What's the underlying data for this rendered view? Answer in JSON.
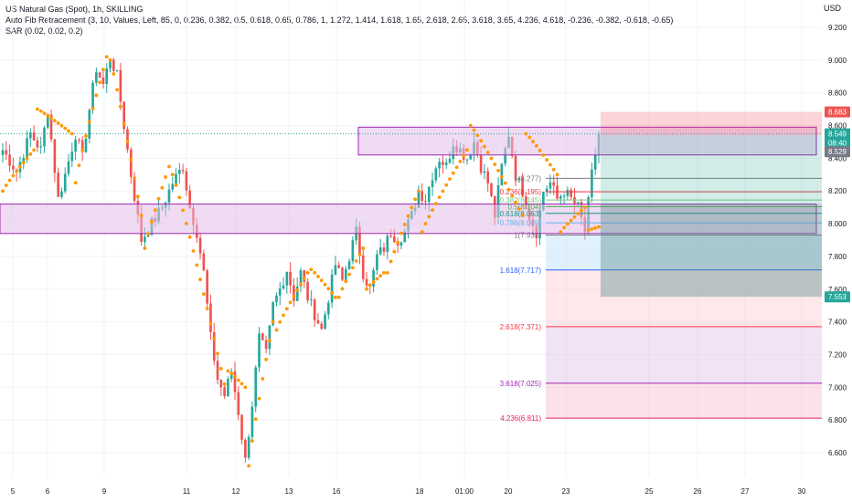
{
  "legend": {
    "line1": "US Natural Gas (Spot), 1h, SKILLING",
    "line2": "Auto Fib Retracement (3, 10, Values, Left, 85, 0, 0.236, 0.382, 0.5, 0.618, 0.65, 0.786, 1, 1.272, 1.414, 1.618, 1.65, 2.618, 2.65, 3.618, 3.65, 4.236, 4.618, -0.236, -0.382, -0.618, -0.65)",
    "line3": "SAR (0.02, 0.02, 0.2)"
  },
  "currency": "USD",
  "colors": {
    "up": "#26a69a",
    "down": "#ef5350",
    "sar": "#ff9800",
    "zone_fill": "#e1bee7",
    "zone_stroke": "#9c27b0",
    "grid": "#f0f3fa",
    "axis_text": "#131722",
    "price_tag": "#26a69a",
    "stop_tag": "#ef5350"
  },
  "chart_data": {
    "type": "candlestick",
    "title": "US Natural Gas (Spot), 1h, SKILLING",
    "ylim": [
      6.4,
      9.35
    ],
    "y_ticks": [
      "9.200",
      "9.000",
      "8.800",
      "8.600",
      "8.400",
      "8.200",
      "8.000",
      "7.800",
      "7.600",
      "7.400",
      "7.200",
      "7.000",
      "6.800",
      "6.600"
    ],
    "x_ticks": [
      "5",
      "6",
      "9",
      "11",
      "12",
      "13",
      "16",
      "18",
      "01:00",
      "20",
      "23",
      "25",
      "26",
      "27",
      "30"
    ],
    "price_anchors": [
      [
        0,
        8.45
      ],
      [
        4,
        8.32
      ],
      [
        8,
        8.55
      ],
      [
        11,
        8.45
      ],
      [
        13,
        8.7
      ],
      [
        16,
        8.15
      ],
      [
        18,
        8.3
      ],
      [
        21,
        8.55
      ],
      [
        23,
        8.4
      ],
      [
        25,
        8.7
      ],
      [
        27,
        8.95
      ],
      [
        29,
        8.85
      ],
      [
        31,
        9.02
      ],
      [
        33,
        8.9
      ],
      [
        35,
        8.6
      ],
      [
        37,
        8.3
      ],
      [
        40,
        7.9
      ],
      [
        43,
        8.0
      ],
      [
        46,
        8.1
      ],
      [
        49,
        8.25
      ],
      [
        52,
        8.35
      ],
      [
        54,
        8.1
      ],
      [
        56,
        7.95
      ],
      [
        58,
        7.7
      ],
      [
        60,
        7.3
      ],
      [
        62,
        7.05
      ],
      [
        64,
        6.95
      ],
      [
        66,
        7.1
      ],
      [
        68,
        6.85
      ],
      [
        70,
        6.55
      ],
      [
        72,
        6.9
      ],
      [
        74,
        7.3
      ],
      [
        76,
        7.2
      ],
      [
        78,
        7.5
      ],
      [
        80,
        7.6
      ],
      [
        82,
        7.72
      ],
      [
        84,
        7.55
      ],
      [
        86,
        7.7
      ],
      [
        88,
        7.55
      ],
      [
        90,
        7.45
      ],
      [
        92,
        7.35
      ],
      [
        94,
        7.55
      ],
      [
        96,
        7.75
      ],
      [
        98,
        7.65
      ],
      [
        100,
        7.8
      ],
      [
        102,
        7.95
      ],
      [
        104,
        7.7
      ],
      [
        106,
        7.6
      ],
      [
        108,
        7.8
      ],
      [
        110,
        7.85
      ],
      [
        112,
        7.95
      ],
      [
        114,
        7.9
      ],
      [
        116,
        7.95
      ],
      [
        118,
        8.05
      ],
      [
        120,
        8.2
      ],
      [
        122,
        8.15
      ],
      [
        124,
        8.3
      ],
      [
        126,
        8.4
      ],
      [
        128,
        8.35
      ],
      [
        130,
        8.5
      ],
      [
        132,
        8.45
      ],
      [
        134,
        8.4
      ],
      [
        136,
        8.5
      ],
      [
        138,
        8.35
      ],
      [
        140,
        8.25
      ],
      [
        142,
        8.05
      ],
      [
        144,
        8.35
      ],
      [
        146,
        8.55
      ],
      [
        148,
        8.3
      ],
      [
        150,
        8.2
      ],
      [
        152,
        8.05
      ],
      [
        154,
        7.95
      ],
      [
        156,
        8.2
      ],
      [
        158,
        8.25
      ],
      [
        160,
        8.15
      ],
      [
        162,
        8.2
      ],
      [
        164,
        8.15
      ],
      [
        166,
        8.1
      ],
      [
        168,
        7.95
      ],
      [
        170,
        8.3
      ],
      [
        172,
        8.55
      ]
    ],
    "sar_segments": [
      {
        "dir": "up",
        "from": 0,
        "to": 9,
        "start": 8.2,
        "end": 8.45
      },
      {
        "dir": "down",
        "from": 10,
        "to": 20,
        "start": 8.7,
        "end": 8.55
      },
      {
        "dir": "up",
        "from": 21,
        "to": 30,
        "start": 8.25,
        "end": 9.02
      },
      {
        "dir": "down",
        "from": 31,
        "to": 40,
        "start": 9.0,
        "end": 8.05
      },
      {
        "dir": "up",
        "from": 41,
        "to": 48,
        "start": 7.85,
        "end": 8.35
      },
      {
        "dir": "down",
        "from": 49,
        "to": 64,
        "start": 8.3,
        "end": 7.02
      },
      {
        "dir": "down",
        "from": 65,
        "to": 70,
        "start": 7.1,
        "end": 7.0
      },
      {
        "dir": "up",
        "from": 71,
        "to": 78,
        "start": 6.52,
        "end": 7.4
      },
      {
        "dir": "up",
        "from": 79,
        "to": 88,
        "start": 7.35,
        "end": 7.7
      },
      {
        "dir": "down",
        "from": 89,
        "to": 96,
        "start": 7.72,
        "end": 7.55
      },
      {
        "dir": "up",
        "from": 97,
        "to": 104,
        "start": 7.55,
        "end": 7.85
      },
      {
        "dir": "up",
        "from": 105,
        "to": 110,
        "start": 7.6,
        "end": 7.7
      },
      {
        "dir": "up",
        "from": 111,
        "to": 120,
        "start": 7.7,
        "end": 8.2
      },
      {
        "dir": "up",
        "from": 121,
        "to": 134,
        "start": 7.95,
        "end": 8.45
      },
      {
        "dir": "down",
        "from": 135,
        "to": 150,
        "start": 8.6,
        "end": 8.05
      },
      {
        "dir": "down",
        "from": 151,
        "to": 160,
        "start": 8.55,
        "end": 8.3
      },
      {
        "dir": "up",
        "from": 161,
        "to": 168,
        "start": 7.95,
        "end": 8.1
      },
      {
        "dir": "up",
        "from": 169,
        "to": 172,
        "start": 7.96,
        "end": 7.98
      }
    ],
    "zones": [
      {
        "y1": 8.12,
        "y2": 7.94
      },
      {
        "y1": 8.59,
        "y2": 8.42
      }
    ],
    "fib_levels": [
      {
        "label": "1(8.277)",
        "price": 8.277,
        "color": "#787b86"
      },
      {
        "label": "0.236(8.195)",
        "price": 8.195,
        "color": "#f23645"
      },
      {
        "label": "0.382(8.145)",
        "price": 8.145,
        "color": "#81c784"
      },
      {
        "label": "0.5(8.104)",
        "price": 8.104,
        "color": "#4caf50"
      },
      {
        "label": "0.618(8.063)",
        "price": 8.063,
        "color": "#089981"
      },
      {
        "label": "0.786(8.005)",
        "price": 8.005,
        "color": "#64b5f6"
      },
      {
        "label": "1(7.931)",
        "price": 7.931,
        "color": "#787b86"
      },
      {
        "label": "1.618(7.717)",
        "price": 7.717,
        "color": "#2962ff"
      },
      {
        "label": "2.618(7.371)",
        "price": 7.371,
        "color": "#f23645"
      },
      {
        "label": "3.618(7.025)",
        "price": 7.025,
        "color": "#9c27b0"
      },
      {
        "label": "4.236(6.811)",
        "price": 6.811,
        "color": "#e91e63"
      }
    ],
    "fib_bands": [
      {
        "top": 7.931,
        "bottom": 7.717,
        "color": "#bbdefb"
      },
      {
        "top": 7.717,
        "bottom": 7.371,
        "color": "#ffcdd2"
      },
      {
        "top": 7.371,
        "bottom": 7.025,
        "color": "#e1bee7"
      },
      {
        "top": 7.025,
        "bottom": 6.811,
        "color": "#f8bbd0"
      }
    ],
    "position": {
      "entry": 8.54,
      "target": 8.683,
      "stop": 7.553,
      "current": 8.549
    },
    "price_tags": [
      {
        "text": "8.683",
        "price": 8.683,
        "bg": "#ef5350"
      },
      {
        "text": "8.549",
        "price": 8.549,
        "bg": "#26a69a"
      },
      {
        "text": "08:40",
        "price": 8.495,
        "bg": "#26a69a"
      },
      {
        "text": "8.529",
        "price": 8.44,
        "bg": "#787b86"
      },
      {
        "text": "7.553",
        "price": 7.553,
        "bg": "#26a69a"
      }
    ]
  }
}
